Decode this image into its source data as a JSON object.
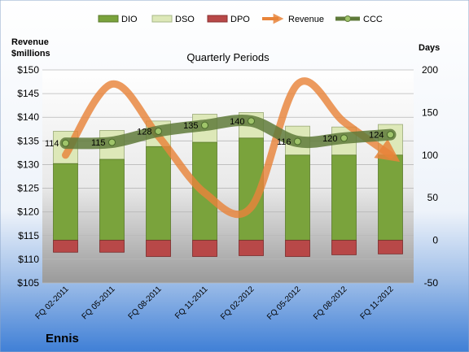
{
  "chart_data": {
    "type": "bar",
    "title": "Quarterly Periods",
    "company": "Ennis",
    "left_axis_title": [
      "Revenue",
      "$millions"
    ],
    "right_axis_title": "Days",
    "categories": [
      "FQ 02-2011",
      "FQ 05-2011",
      "FQ 08-2011",
      "FQ 11-2011",
      "FQ 02-2012",
      "FQ 05-2012",
      "FQ 08-2012",
      "FQ 11-2012"
    ],
    "left_ylim": [
      105,
      150
    ],
    "left_ticks": [
      "$105",
      "$110",
      "$115",
      "$120",
      "$125",
      "$130",
      "$135",
      "$140",
      "$145",
      "$150"
    ],
    "right_ylim": [
      -50,
      200
    ],
    "right_ticks": [
      "-50",
      "0",
      "50",
      "100",
      "150",
      "200"
    ],
    "legend": [
      "DIO",
      "DSO",
      "DPO",
      "Revenue",
      "CCC"
    ],
    "series": [
      {
        "name": "DIO",
        "axis": "right",
        "color": "#7aa33c",
        "values": [
          90,
          95,
          110,
          115,
          120,
          100,
          100,
          100
        ]
      },
      {
        "name": "DSO",
        "axis": "right",
        "color": "#dde8b8",
        "values": [
          38,
          34,
          30,
          33,
          30,
          34,
          33,
          36
        ]
      },
      {
        "name": "DPO",
        "axis": "right",
        "color": "#b84848",
        "values": [
          -14,
          -14,
          -19,
          -19,
          -18,
          -19,
          -17,
          -16
        ]
      },
      {
        "name": "Revenue",
        "axis": "left",
        "color": "#e8843a",
        "values": [
          132,
          147,
          136,
          124,
          121,
          147,
          139,
          132
        ]
      },
      {
        "name": "CCC",
        "axis": "right",
        "color": "#5f7a3a",
        "values": [
          114,
          115,
          128,
          135,
          140,
          116,
          120,
          124
        ]
      }
    ],
    "ccc_labels": [
      "114",
      "115",
      "128",
      "135",
      "140",
      "116",
      "120",
      "124"
    ],
    "grid": true,
    "legend_position": "top"
  }
}
